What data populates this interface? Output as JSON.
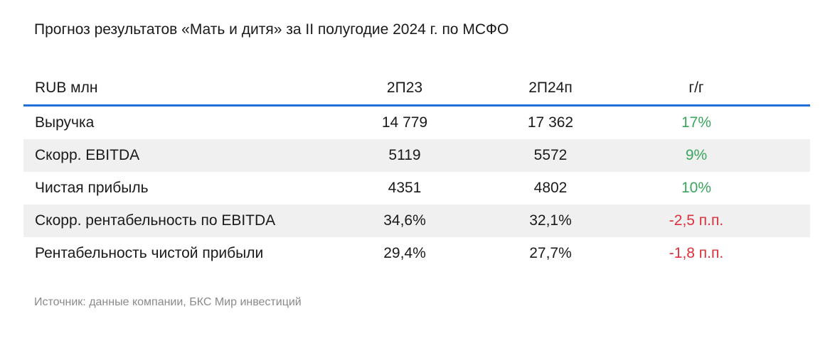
{
  "title": "Прогноз результатов «Мать и дитя» за II полугодие 2024 г. по МСФО",
  "table": {
    "headers": [
      "RUB млн",
      "2П23",
      "2П24п",
      "г/г"
    ],
    "rows": [
      {
        "label": "Выручка",
        "p23": "14 779",
        "p24": "17 362",
        "yoy": "17%",
        "trend": "positive"
      },
      {
        "label": "Скорр. EBITDA",
        "p23": "5119",
        "p24": "5572",
        "yoy": "9%",
        "trend": "positive"
      },
      {
        "label": "Чистая прибыль",
        "p23": "4351",
        "p24": "4802",
        "yoy": "10%",
        "trend": "positive"
      },
      {
        "label": "Скорр. рентабельность по EBITDA",
        "p23": "34,6%",
        "p24": "32,1%",
        "yoy": "-2,5 п.п.",
        "trend": "negative"
      },
      {
        "label": "Рентабельность чистой прибыли",
        "p23": "29,4%",
        "p24": "27,7%",
        "yoy": "-1,8 п.п.",
        "trend": "negative"
      }
    ]
  },
  "source": "Источник: данные компании, БКС Мир инвестиций",
  "colors": {
    "header_rule": "#1e6fd9",
    "positive": "#3aa55d",
    "negative": "#e0303b",
    "row_shade": "#f0f0f0"
  }
}
